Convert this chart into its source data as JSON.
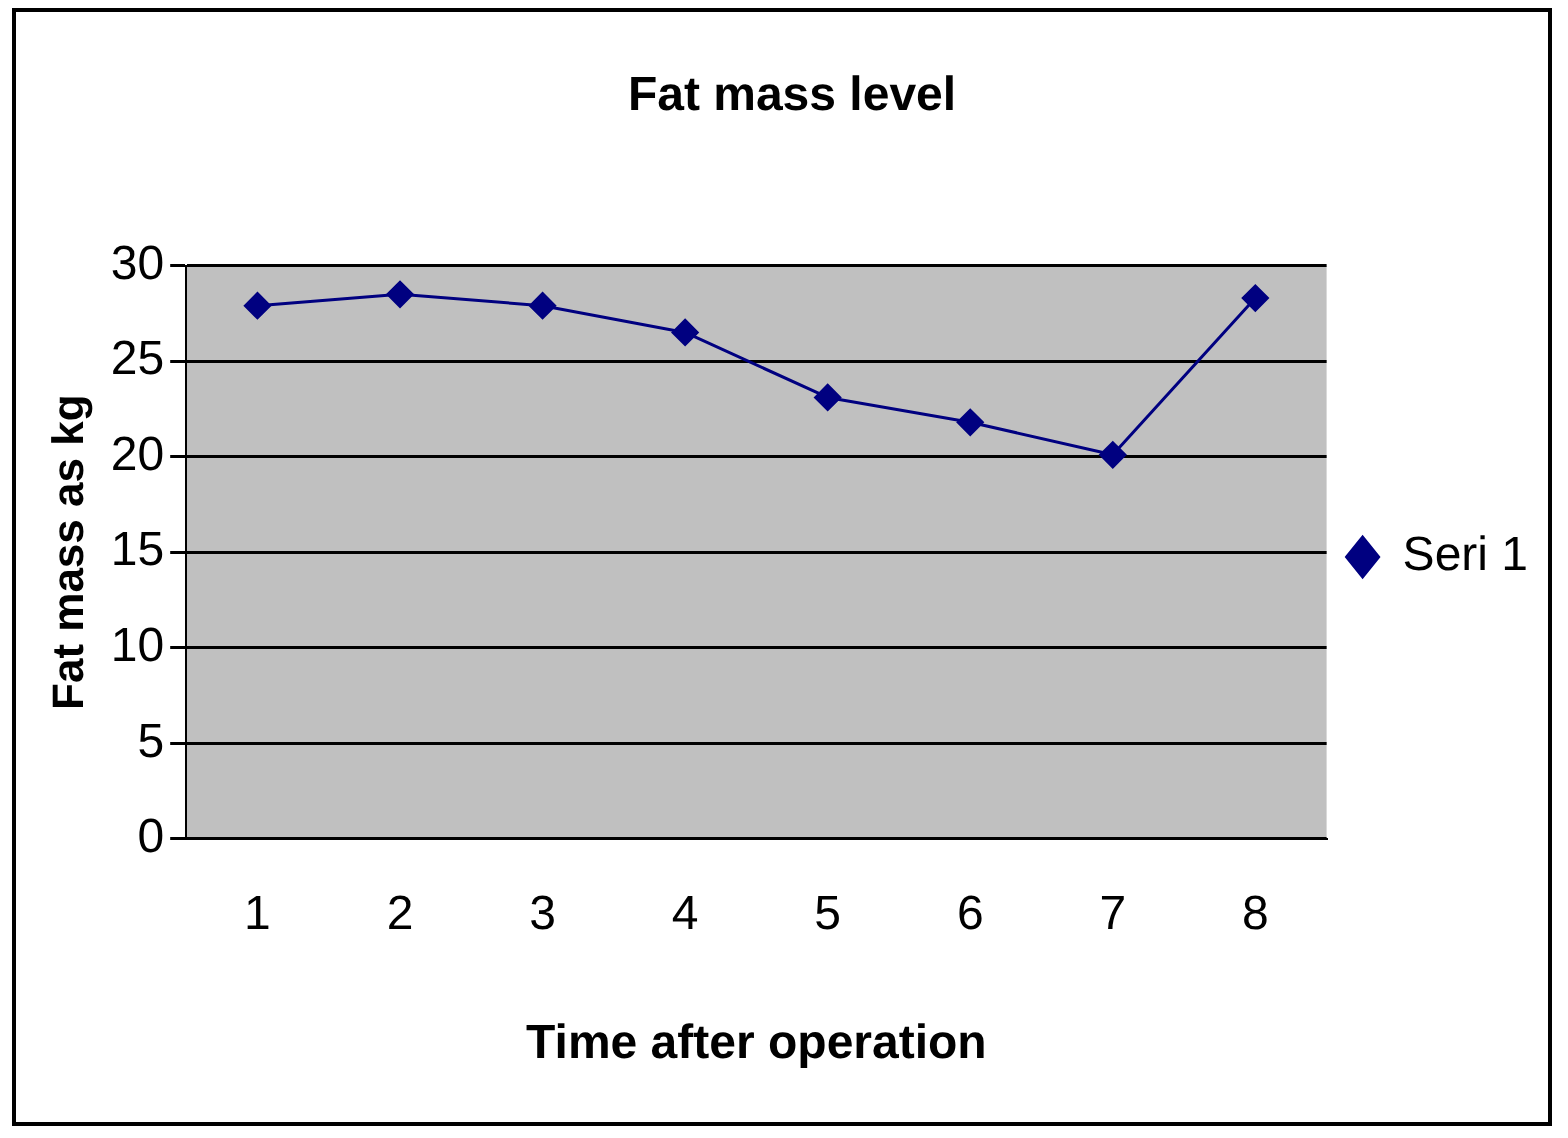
{
  "chart_data": {
    "type": "line",
    "title": "Fat mass level",
    "xlabel": "Time after operation",
    "ylabel": "Fat mass as kg",
    "categories": [
      "1",
      "2",
      "3",
      "4",
      "5",
      "6",
      "7",
      "8"
    ],
    "series": [
      {
        "name": "Seri 1",
        "color": "#000080",
        "values": [
          27.9,
          28.5,
          27.9,
          26.5,
          23.1,
          21.8,
          20.1,
          28.3
        ]
      }
    ],
    "ylim": [
      0,
      30
    ],
    "yticks": [
      0,
      5,
      10,
      15,
      20,
      25,
      30
    ],
    "grid": "y",
    "legend": "right",
    "marker": "diamond",
    "line_style": "solid"
  }
}
